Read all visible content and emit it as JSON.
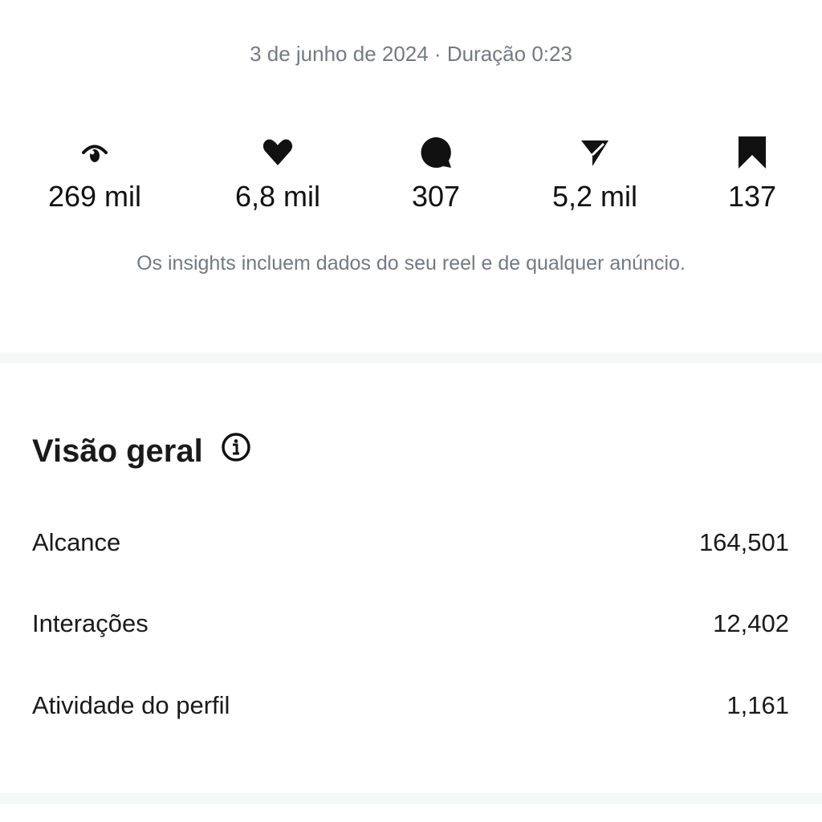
{
  "header": {
    "date_duration": "3 de junho de 2024 · Duração 0:23"
  },
  "stats": [
    {
      "icon": "eye-icon",
      "value": "269 mil"
    },
    {
      "icon": "heart-icon",
      "value": "6,8 mil"
    },
    {
      "icon": "comment-icon",
      "value": "307"
    },
    {
      "icon": "share-icon",
      "value": "5,2 mil"
    },
    {
      "icon": "bookmark-icon",
      "value": "137"
    }
  ],
  "note": "Os insights incluem dados do seu reel e de qualquer anúncio.",
  "overview": {
    "title": "Visão geral",
    "rows": [
      {
        "label": "Alcance",
        "value": "164,501"
      },
      {
        "label": "Interações",
        "value": "12,402"
      },
      {
        "label": "Atividade do perfil",
        "value": "1,161"
      }
    ]
  }
}
